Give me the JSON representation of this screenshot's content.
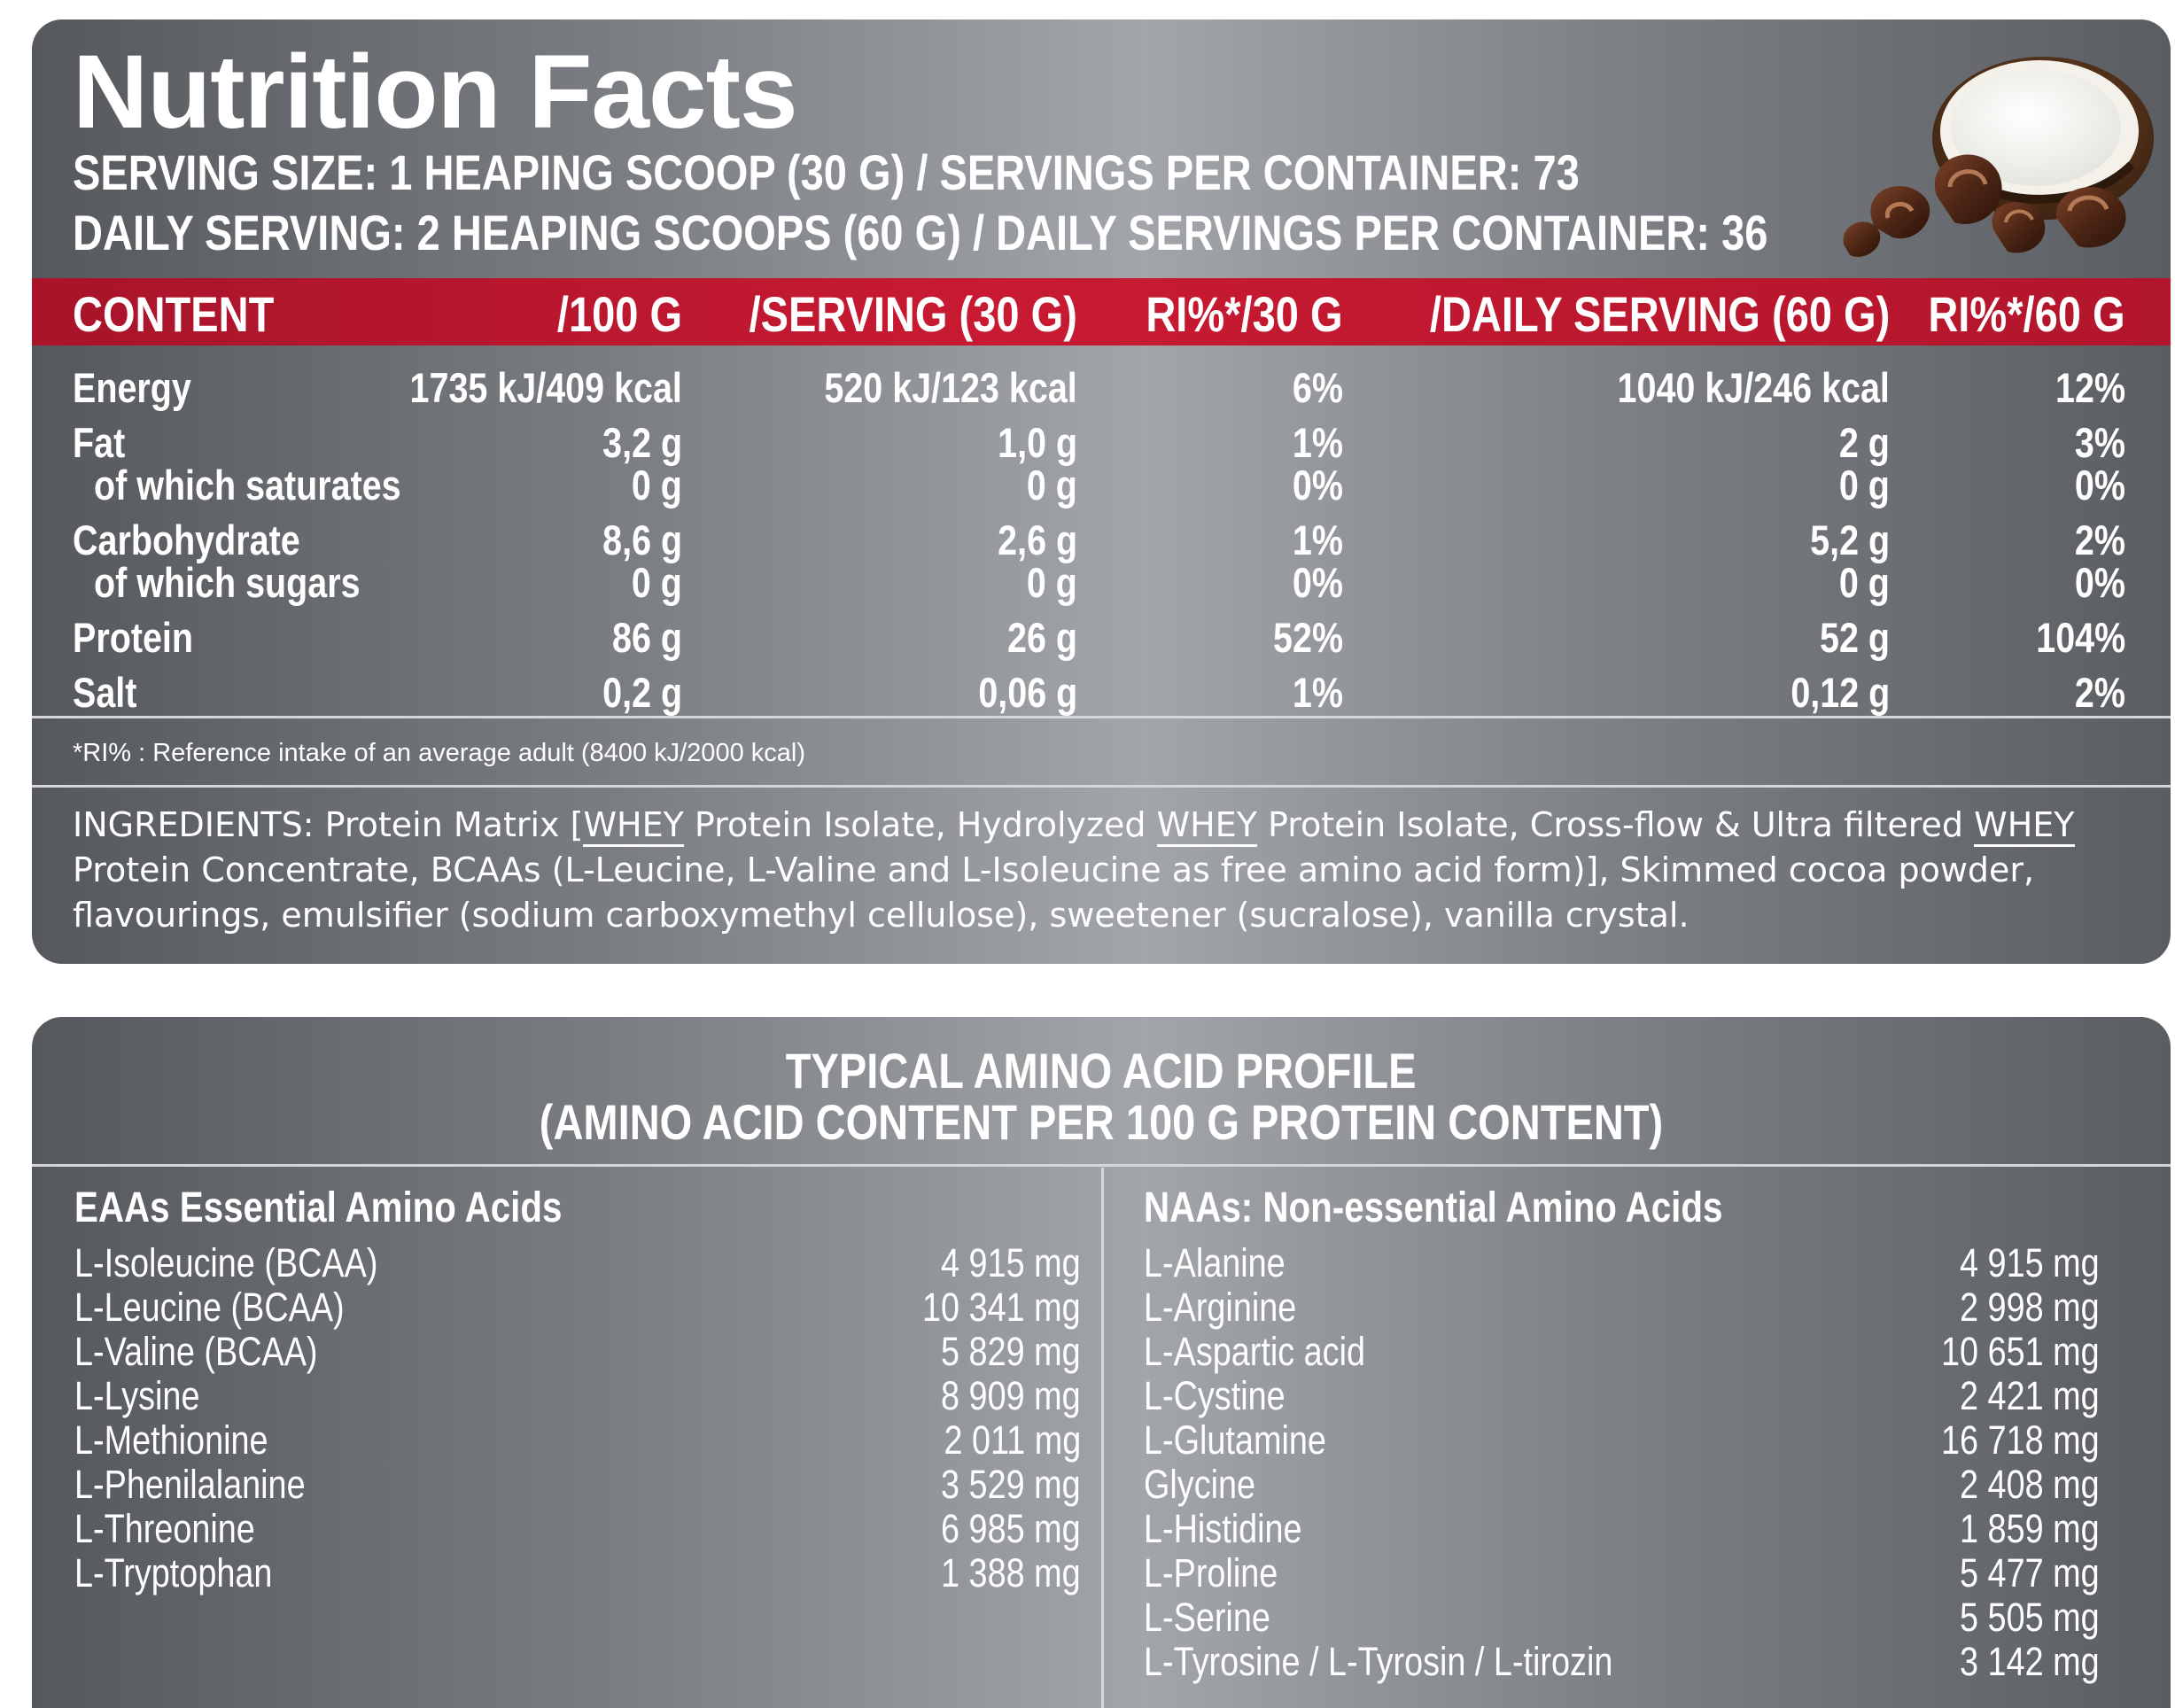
{
  "title": "Nutrition Facts",
  "serving_size": "SERVING SIZE: 1 HEAPING SCOOP  (30 G) / SERVINGS PER CONTAINER: 73",
  "daily_serving": "DAILY SERVING: 2 HEAPING SCOOPS (60 G) / DAILY SERVINGS PER CONTAINER: 36",
  "table": {
    "headers": [
      "CONTENT",
      "/100 G",
      "/SERVING (30 G)",
      "RI%*/30 G",
      "/DAILY SERVING (60 G)",
      "RI%*/60 G"
    ],
    "rows": [
      {
        "label": "Energy",
        "indent": false,
        "per100": "1735 kJ/409 kcal",
        "serving": "520 kJ/123 kcal",
        "ri30": "6%",
        "daily": "1040 kJ/246 kcal",
        "ri60": "12%"
      },
      {
        "label": "Fat",
        "indent": false,
        "per100": "3,2 g",
        "serving": "1,0 g",
        "ri30": "1%",
        "daily": "2 g",
        "ri60": "3%"
      },
      {
        "label": "of which saturates",
        "indent": true,
        "per100": "0 g",
        "serving": "0 g",
        "ri30": "0%",
        "daily": "0 g",
        "ri60": "0%"
      },
      {
        "label": "Carbohydrate",
        "indent": false,
        "per100": "8,6 g",
        "serving": "2,6 g",
        "ri30": "1%",
        "daily": "5,2 g",
        "ri60": "2%"
      },
      {
        "label": "of which sugars",
        "indent": true,
        "per100": "0 g",
        "serving": "0 g",
        "ri30": "0%",
        "daily": "0 g",
        "ri60": "0%"
      },
      {
        "label": "Protein",
        "indent": false,
        "per100": "86 g",
        "serving": "26 g",
        "ri30": "52%",
        "daily": "52 g",
        "ri60": "104%"
      },
      {
        "label": "Salt",
        "indent": false,
        "per100": "0,2 g",
        "serving": "0,06 g",
        "ri30": "1%",
        "daily": "0,12 g",
        "ri60": "2%"
      }
    ]
  },
  "footnote": "*RI% : Reference intake of an average adult (8400 kJ/2000 kcal)",
  "ingredients": {
    "p1": "INGREDIENTS: Protein Matrix [",
    "whey": "WHEY",
    "p2": " Protein Isolate, Hydrolyzed ",
    "p3": " Protein Isolate, Cross-flow & Ultra filtered ",
    "p4": " Protein Concentrate, BCAAs (L-Leucine, L-Valine and L-Isoleucine as free amino acid form)], Skimmed cocoa powder, flavourings,  emulsifier (sodium carboxymethyl cellulose), sweetener (sucralose), vanilla crystal."
  },
  "amino": {
    "title_line1": "TYPICAL AMINO ACID PROFILE",
    "title_line2": "(AMINO ACID CONTENT PER 100 G PROTEIN CONTENT)",
    "essential_title": "EAAs Essential Amino Acids",
    "nonessential_title": "NAAs: Non-essential Amino Acids",
    "essential": [
      {
        "name": "L-Isoleucine (BCAA)",
        "value": "4 915 mg"
      },
      {
        "name": "L-Leucine (BCAA)",
        "value": "10 341 mg"
      },
      {
        "name": "L-Valine (BCAA)",
        "value": "5 829 mg"
      },
      {
        "name": "L-Lysine",
        "value": "8 909 mg"
      },
      {
        "name": "L-Methionine",
        "value": "2 011 mg"
      },
      {
        "name": "L-Phenilalanine",
        "value": "3 529 mg"
      },
      {
        "name": "L-Threonine",
        "value": "6 985 mg"
      },
      {
        "name": "L-Tryptophan",
        "value": "1 388 mg"
      }
    ],
    "nonessential": [
      {
        "name": "L-Alanine",
        "value": "4 915 mg"
      },
      {
        "name": "L-Arginine",
        "value": "2 998 mg"
      },
      {
        "name": "L-Aspartic acid",
        "value": "10 651 mg"
      },
      {
        "name": "L-Cystine",
        "value": "2 421 mg"
      },
      {
        "name": "L-Glutamine",
        "value": "16 718 mg"
      },
      {
        "name": "Glycine",
        "value": "2 408 mg"
      },
      {
        "name": "L-Histidine",
        "value": "1 859 mg"
      },
      {
        "name": "L-Proline",
        "value": "5 477 mg"
      },
      {
        "name": "L-Serine",
        "value": "5 505 mg"
      },
      {
        "name": "L-Tyrosine / L-Tyrosin / L-tirozin",
        "value": "3 142 mg"
      }
    ]
  },
  "colors": {
    "header_red": "#c81a32",
    "panel_dark": "#55585c",
    "panel_light": "#a2a5aa"
  },
  "image": "coconut-chocolate-image"
}
